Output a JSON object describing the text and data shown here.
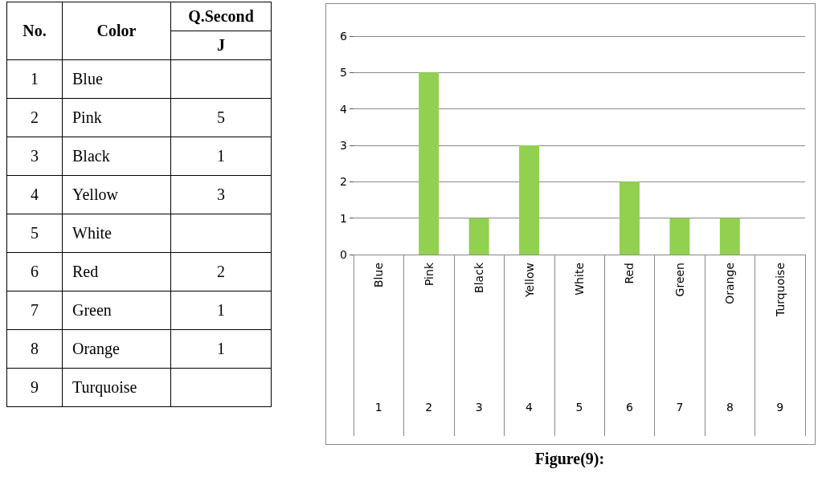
{
  "chart_data": {
    "type": "bar",
    "categories": [
      "Blue",
      "Pink",
      "Black",
      "Yellow",
      "White",
      "Red",
      "Green",
      "Orange",
      "Turquoise"
    ],
    "values": [
      null,
      5,
      1,
      3,
      null,
      2,
      1,
      1,
      null
    ],
    "color": "#92d050",
    "ylim": [
      0,
      6
    ],
    "yticks": [
      0,
      1,
      2,
      3,
      4,
      5,
      6
    ],
    "grid": "y",
    "annotations": [
      "No.",
      "Color",
      "Q.Second",
      "J",
      "Figure(9):",
      "1",
      "2",
      "3",
      "4",
      "5",
      "6",
      "7",
      "8",
      "9"
    ]
  }
}
